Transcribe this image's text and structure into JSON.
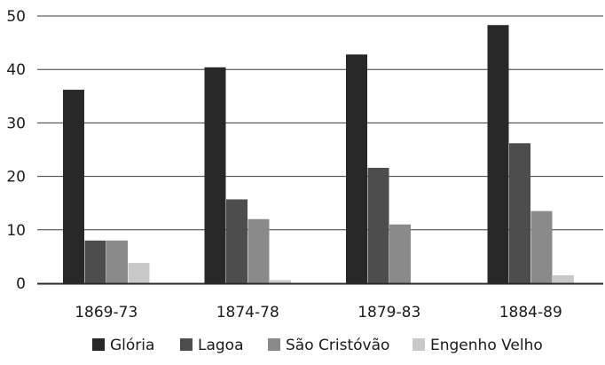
{
  "chart_data": {
    "type": "bar",
    "categories": [
      "1869-73",
      "1874-78",
      "1879-83",
      "1884-89"
    ],
    "series": [
      {
        "name": "Glória",
        "values": [
          36.2,
          40.4,
          42.8,
          48.3
        ],
        "color": "#282828"
      },
      {
        "name": "Lagoa",
        "values": [
          8.0,
          15.7,
          21.6,
          26.2
        ],
        "color": "#4d4d4d"
      },
      {
        "name": "São Cristóvão",
        "values": [
          8.0,
          12.0,
          11.0,
          13.5
        ],
        "color": "#8a8a8a"
      },
      {
        "name": "Engenho Velho",
        "values": [
          3.8,
          0.6,
          0.0,
          1.5
        ],
        "color": "#c8c8c8"
      }
    ],
    "ylim": [
      0,
      50
    ],
    "yticks": [
      0,
      10,
      20,
      30,
      40,
      50
    ],
    "grid": "horizontal",
    "legend_position": "bottom",
    "title": "",
    "xlabel": "",
    "ylabel": ""
  }
}
